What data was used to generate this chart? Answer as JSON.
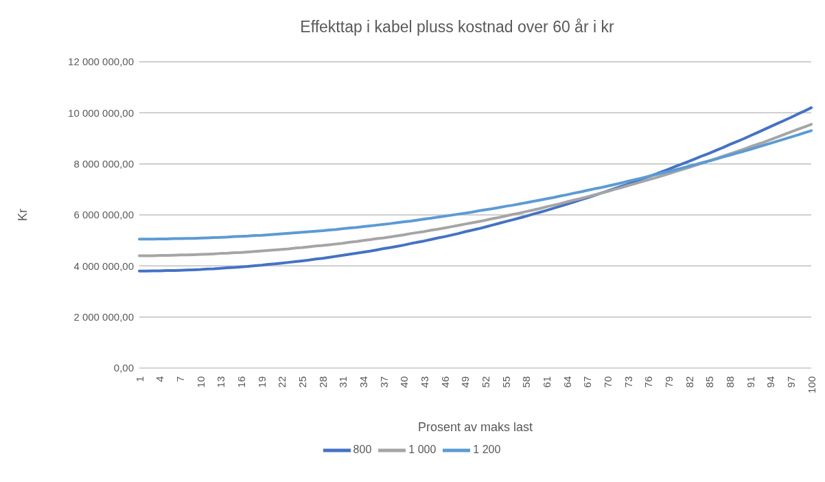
{
  "chart_data": {
    "type": "line",
    "title": "Effekttap i kabel pluss kostnad over 60 år i kr",
    "xlabel": "Prosent av maks last",
    "ylabel": "Kr",
    "categories": [
      "1",
      null,
      null,
      "4",
      null,
      null,
      "7",
      null,
      null,
      "10",
      null,
      null,
      "13",
      null,
      null,
      "16",
      null,
      null,
      "19",
      null,
      null,
      "22",
      null,
      null,
      "25",
      null,
      null,
      "28",
      null,
      null,
      "31",
      null,
      null,
      "34",
      null,
      null,
      "37",
      null,
      null,
      "40",
      null,
      null,
      "43",
      null,
      null,
      "46",
      null,
      null,
      "49",
      null,
      null,
      "52",
      null,
      null,
      "55",
      null,
      null,
      "58",
      null,
      null,
      "61",
      null,
      null,
      "64",
      null,
      null,
      "67",
      null,
      null,
      "70",
      null,
      null,
      "73",
      null,
      null,
      "76",
      null,
      null,
      "79",
      null,
      null,
      "82",
      null,
      null,
      "85",
      null,
      null,
      "88",
      null,
      null,
      "91",
      null,
      null,
      "94",
      null,
      null,
      "97",
      null,
      null,
      "100"
    ],
    "series": [
      {
        "name": "800",
        "color": "#4472c4",
        "values": [
          3800000,
          3800000,
          3810000,
          3810000,
          3820000,
          3820000,
          3830000,
          3840000,
          3850000,
          3860000,
          3880000,
          3890000,
          3910000,
          3930000,
          3940000,
          3960000,
          3980000,
          4010000,
          4030000,
          4060000,
          4080000,
          4110000,
          4140000,
          4170000,
          4200000,
          4230000,
          4270000,
          4300000,
          4340000,
          4380000,
          4420000,
          4460000,
          4500000,
          4540000,
          4580000,
          4630000,
          4680000,
          4720000,
          4770000,
          4820000,
          4880000,
          4930000,
          4980000,
          5040000,
          5100000,
          5150000,
          5210000,
          5270000,
          5340000,
          5400000,
          5460000,
          5530000,
          5600000,
          5670000,
          5740000,
          5810000,
          5880000,
          5950000,
          6030000,
          6100000,
          6180000,
          6260000,
          6340000,
          6420000,
          6500000,
          6590000,
          6670000,
          6760000,
          6850000,
          6940000,
          7030000,
          7120000,
          7210000,
          7300000,
          7400000,
          7500000,
          7590000,
          7690000,
          7790000,
          7900000,
          8000000,
          8100000,
          8210000,
          8320000,
          8420000,
          8530000,
          8640000,
          8760000,
          8870000,
          8980000,
          9100000,
          9220000,
          9340000,
          9460000,
          9580000,
          9700000,
          9820000,
          9950000,
          10070000,
          10200000
        ]
      },
      {
        "name": "1 000",
        "color": "#a5a5a5",
        "values": [
          4400000,
          4400000,
          4400000,
          4410000,
          4410000,
          4420000,
          4430000,
          4430000,
          4440000,
          4450000,
          4460000,
          4470000,
          4490000,
          4500000,
          4520000,
          4530000,
          4550000,
          4570000,
          4590000,
          4610000,
          4630000,
          4650000,
          4670000,
          4700000,
          4720000,
          4750000,
          4780000,
          4800000,
          4830000,
          4860000,
          4890000,
          4930000,
          4960000,
          5000000,
          5030000,
          5070000,
          5100000,
          5140000,
          5180000,
          5220000,
          5270000,
          5310000,
          5350000,
          5400000,
          5440000,
          5490000,
          5540000,
          5590000,
          5640000,
          5690000,
          5740000,
          5790000,
          5850000,
          5900000,
          5960000,
          6020000,
          6070000,
          6130000,
          6190000,
          6250000,
          6320000,
          6380000,
          6440000,
          6510000,
          6580000,
          6640000,
          6710000,
          6780000,
          6850000,
          6920000,
          7000000,
          7070000,
          7150000,
          7220000,
          7300000,
          7380000,
          7450000,
          7530000,
          7610000,
          7700000,
          7780000,
          7860000,
          7950000,
          8030000,
          8120000,
          8210000,
          8300000,
          8390000,
          8480000,
          8570000,
          8670000,
          8760000,
          8850000,
          8950000,
          9050000,
          9150000,
          9250000,
          9350000,
          9450000,
          9550000
        ]
      },
      {
        "name": "1 200",
        "color": "#5b9bd5",
        "values": [
          5050000,
          5050000,
          5050000,
          5060000,
          5060000,
          5070000,
          5070000,
          5080000,
          5080000,
          5090000,
          5100000,
          5110000,
          5120000,
          5130000,
          5150000,
          5160000,
          5170000,
          5190000,
          5200000,
          5220000,
          5240000,
          5260000,
          5280000,
          5300000,
          5320000,
          5340000,
          5360000,
          5380000,
          5410000,
          5430000,
          5460000,
          5490000,
          5510000,
          5540000,
          5570000,
          5600000,
          5630000,
          5660000,
          5700000,
          5730000,
          5760000,
          5800000,
          5840000,
          5870000,
          5910000,
          5950000,
          5990000,
          6030000,
          6070000,
          6110000,
          6160000,
          6200000,
          6240000,
          6290000,
          6340000,
          6380000,
          6430000,
          6480000,
          6530000,
          6580000,
          6630000,
          6680000,
          6740000,
          6790000,
          6850000,
          6900000,
          6960000,
          7020000,
          7070000,
          7130000,
          7190000,
          7250000,
          7320000,
          7380000,
          7440000,
          7510000,
          7570000,
          7640000,
          7700000,
          7770000,
          7840000,
          7910000,
          7980000,
          8050000,
          8120000,
          8190000,
          8270000,
          8340000,
          8420000,
          8490000,
          8570000,
          8650000,
          8730000,
          8810000,
          8890000,
          8970000,
          9050000,
          9130000,
          9220000,
          9300000
        ]
      }
    ],
    "ylim": [
      0,
      12000000
    ],
    "yticks": [
      {
        "value": 0,
        "label": "0,00"
      },
      {
        "value": 2000000,
        "label": "2 000 000,00"
      },
      {
        "value": 4000000,
        "label": "4 000 000,00"
      },
      {
        "value": 6000000,
        "label": "6 000 000,00"
      },
      {
        "value": 8000000,
        "label": "8 000 000,00"
      },
      {
        "value": 10000000,
        "label": "10 000 000,00"
      },
      {
        "value": 12000000,
        "label": "12 000 000,00"
      }
    ],
    "grid": "y",
    "legend": "bottom",
    "marker": "none",
    "line_style": "solid"
  }
}
